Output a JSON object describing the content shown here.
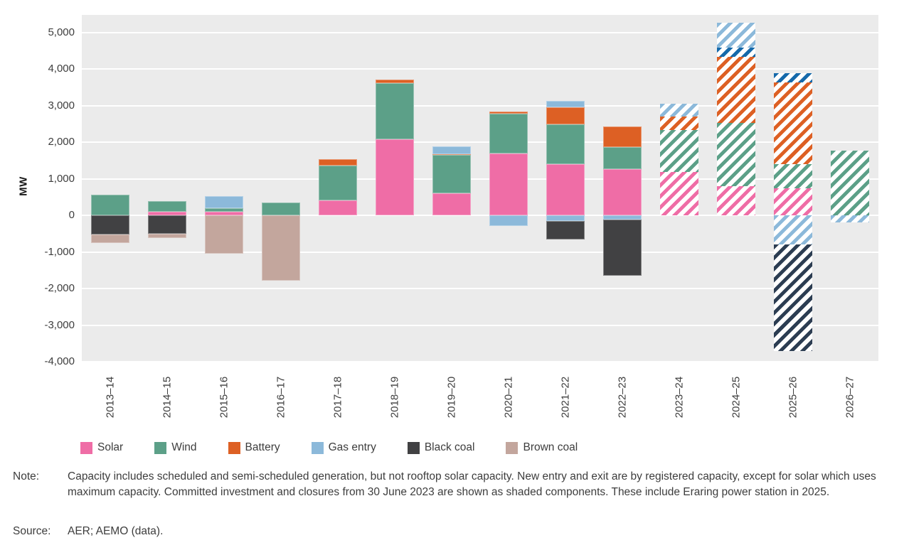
{
  "chart_data": {
    "type": "bar",
    "stacked": true,
    "title": "",
    "ylabel": "MW",
    "xlabel": "",
    "ylim": [
      -4000,
      5485
    ],
    "grid": true,
    "legend_position": "bottom",
    "yticks": [
      {
        "value": 5000,
        "label": "5,000"
      },
      {
        "value": 4000,
        "label": "4,000"
      },
      {
        "value": 3000,
        "label": "3,000"
      },
      {
        "value": 2000,
        "label": "2,000"
      },
      {
        "value": 1000,
        "label": "1,000"
      },
      {
        "value": 0,
        "label": "0"
      },
      {
        "value": -1000,
        "label": "-1,000"
      },
      {
        "value": -2000,
        "label": "-2,000"
      },
      {
        "value": -3000,
        "label": "-3,000"
      },
      {
        "value": -4000,
        "label": "-4,000"
      }
    ],
    "legend": [
      {
        "label": "Solar",
        "color": "#ef6da6"
      },
      {
        "label": "Wind",
        "color": "#5ca088"
      },
      {
        "label": "Battery",
        "color": "#dd6024"
      },
      {
        "label": "Gas entry",
        "color": "#8cb9da"
      },
      {
        "label": "Black coal",
        "color": "#414143"
      },
      {
        "label": "Brown coal",
        "color": "#c3a69d"
      }
    ],
    "hatching_meaning": "Shaded (hatched) bars from 2023-24 onward show committed investment and closures from 30 June 2023",
    "categories": [
      "2013–14",
      "2014–15",
      "2015–16",
      "2016–17",
      "2017–18",
      "2018–19",
      "2019–20",
      "2020–21",
      "2021–22",
      "2022–23",
      "2023–24",
      "2024–25",
      "2025–26",
      "2026–27"
    ],
    "bars": [
      {
        "category": "2013–14",
        "hatched": false,
        "segments": [
          {
            "series": "Wind",
            "color": "#5ca088",
            "value": 570
          },
          {
            "series": "Black coal",
            "color": "#414143",
            "value": -520
          },
          {
            "series": "Brown coal",
            "color": "#c3a69d",
            "value": -230
          }
        ]
      },
      {
        "category": "2014–15",
        "hatched": false,
        "segments": [
          {
            "series": "Solar",
            "color": "#ef6da6",
            "value": 100
          },
          {
            "series": "Wind",
            "color": "#5ca088",
            "value": 300
          },
          {
            "series": "Black coal",
            "color": "#414143",
            "value": -500
          },
          {
            "series": "Brown coal",
            "color": "#c3a69d",
            "value": -110
          }
        ]
      },
      {
        "category": "2015–16",
        "hatched": false,
        "segments": [
          {
            "series": "Solar",
            "color": "#ef6da6",
            "value": 110
          },
          {
            "series": "Wind",
            "color": "#5ca088",
            "value": 90
          },
          {
            "series": "Gas entry",
            "color": "#8cb9da",
            "value": 330
          },
          {
            "series": "Brown coal",
            "color": "#c3a69d",
            "value": -1050
          }
        ]
      },
      {
        "category": "2016–17",
        "hatched": false,
        "segments": [
          {
            "series": "Wind",
            "color": "#5ca088",
            "value": 350
          },
          {
            "series": "Brown coal",
            "color": "#c3a69d",
            "value": -1790
          }
        ]
      },
      {
        "category": "2017–18",
        "hatched": false,
        "segments": [
          {
            "series": "Solar",
            "color": "#ef6da6",
            "value": 410
          },
          {
            "series": "Wind",
            "color": "#5ca088",
            "value": 950
          },
          {
            "series": "Battery",
            "color": "#dd6024",
            "value": 185
          }
        ]
      },
      {
        "category": "2018–19",
        "hatched": false,
        "segments": [
          {
            "series": "Solar",
            "color": "#ef6da6",
            "value": 2090
          },
          {
            "series": "Wind",
            "color": "#5ca088",
            "value": 1525
          },
          {
            "series": "Battery",
            "color": "#dd6024",
            "value": 105
          }
        ]
      },
      {
        "category": "2019–20",
        "hatched": false,
        "segments": [
          {
            "series": "Solar",
            "color": "#ef6da6",
            "value": 610
          },
          {
            "series": "Wind",
            "color": "#5ca088",
            "value": 1045
          },
          {
            "series": "Battery",
            "color": "#dd6024",
            "value": 30
          },
          {
            "series": "Gas entry",
            "color": "#8cb9da",
            "value": 210
          }
        ]
      },
      {
        "category": "2020–21",
        "hatched": false,
        "segments": [
          {
            "series": "Solar",
            "color": "#ef6da6",
            "value": 1695
          },
          {
            "series": "Wind",
            "color": "#5ca088",
            "value": 1085
          },
          {
            "series": "Battery",
            "color": "#dd6024",
            "value": 60
          },
          {
            "series": "Gas entry",
            "color": "#8cb9da",
            "value": -280
          }
        ]
      },
      {
        "category": "2021–22",
        "hatched": false,
        "segments": [
          {
            "series": "Solar",
            "color": "#ef6da6",
            "value": 1410
          },
          {
            "series": "Wind",
            "color": "#5ca088",
            "value": 1085
          },
          {
            "series": "Battery",
            "color": "#dd6024",
            "value": 470
          },
          {
            "series": "Gas entry",
            "color": "#8cb9da",
            "value": 165
          },
          {
            "series": "Gas entry",
            "color": "#8cb9da",
            "value": -150
          },
          {
            "series": "Black coal",
            "color": "#414143",
            "value": -515
          }
        ]
      },
      {
        "category": "2022–23",
        "hatched": false,
        "segments": [
          {
            "series": "Solar",
            "color": "#ef6da6",
            "value": 1270
          },
          {
            "series": "Wind",
            "color": "#5ca088",
            "value": 605
          },
          {
            "series": "Battery",
            "color": "#dd6024",
            "value": 560
          },
          {
            "series": "Gas entry",
            "color": "#8cb9da",
            "value": -110
          },
          {
            "series": "Black coal",
            "color": "#414143",
            "value": -1530
          }
        ]
      },
      {
        "category": "2023–24",
        "hatched": true,
        "segments": [
          {
            "series": "Solar",
            "color": "#ef6da6",
            "value": 1180
          },
          {
            "series": "Wind",
            "color": "#5ca088",
            "value": 1155
          },
          {
            "series": "Battery",
            "color": "#dd6024",
            "value": 375
          },
          {
            "series": "Gas entry",
            "color": "#8cb9da",
            "value": 350
          }
        ]
      },
      {
        "category": "2024–25",
        "hatched": true,
        "segments": [
          {
            "series": "Solar",
            "color": "#ef6da6",
            "value": 810
          },
          {
            "series": "Wind",
            "color": "#5ca088",
            "value": 1730
          },
          {
            "series": "Battery",
            "color": "#dd6024",
            "value": 1800
          },
          {
            "series": "Unlabelled (dark blue)",
            "color": "#1569aa",
            "value": 260
          },
          {
            "series": "Gas entry",
            "color": "#8cb9da",
            "value": 680
          }
        ]
      },
      {
        "category": "2025–26",
        "hatched": true,
        "segments": [
          {
            "series": "Solar",
            "color": "#ef6da6",
            "value": 750
          },
          {
            "series": "Wind",
            "color": "#5ca088",
            "value": 645
          },
          {
            "series": "Battery",
            "color": "#dd6024",
            "value": 2245
          },
          {
            "series": "Unlabelled (dark blue)",
            "color": "#1569aa",
            "value": 250
          },
          {
            "series": "Gas entry",
            "color": "#8cb9da",
            "value": -790
          },
          {
            "series": "Black coal",
            "color": "#2c3d52",
            "value": -2915
          }
        ]
      },
      {
        "category": "2026–27",
        "hatched": true,
        "segments": [
          {
            "series": "Wind",
            "color": "#5ca088",
            "value": 1780
          },
          {
            "series": "Gas entry",
            "color": "#8cb9da",
            "value": -190
          }
        ]
      }
    ]
  },
  "footnote": {
    "note_label": "Note:",
    "note_text": "Capacity includes scheduled and semi-scheduled generation, but not rooftop solar capacity. New entry and exit are by registered capacity, except for solar which uses maximum capacity. Committed investment and closures from 30 June 2023 are shown as shaded components. These include Eraring power station in 2025.",
    "source_label": "Source:",
    "source_text": "AER; AEMO (data)."
  }
}
